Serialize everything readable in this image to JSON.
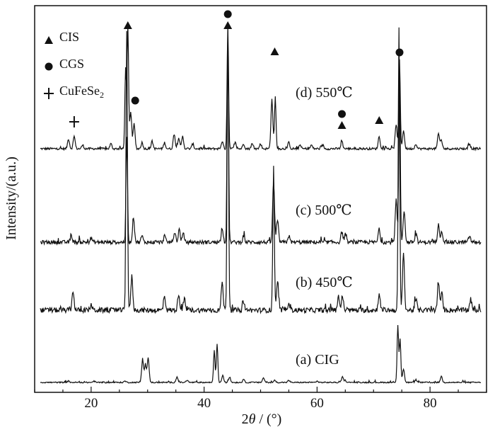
{
  "chart_data": {
    "type": "line",
    "xlabel_prefix": "2",
    "xlabel_theta": "θ",
    "xlabel_unit": " / (°)",
    "ylabel": "Intensity/(a.u.)",
    "xlim": [
      10,
      90
    ],
    "xticks": [
      20,
      40,
      60,
      80
    ],
    "legend": [
      {
        "marker": "triangle",
        "label": "CIS"
      },
      {
        "marker": "circle",
        "label": "CGS"
      },
      {
        "marker": "cross",
        "label": "CuFeSe",
        "subscript": "2"
      }
    ],
    "series": [
      {
        "name": "(d) 550℃",
        "peaks": [
          [
            16.0,
            0.08
          ],
          [
            17.0,
            0.1
          ],
          [
            18.5,
            0.03
          ],
          [
            23.5,
            0.04
          ],
          [
            26.1,
            0.66
          ],
          [
            26.5,
            1.0
          ],
          [
            27.0,
            0.3
          ],
          [
            27.6,
            0.2
          ],
          [
            29.0,
            0.05
          ],
          [
            30.8,
            0.06
          ],
          [
            33.0,
            0.05
          ],
          [
            34.7,
            0.12
          ],
          [
            35.5,
            0.09
          ],
          [
            36.2,
            0.1
          ],
          [
            38.0,
            0.04
          ],
          [
            43.2,
            0.06
          ],
          [
            44.2,
            1.0
          ],
          [
            45.5,
            0.05
          ],
          [
            47.0,
            0.04
          ],
          [
            48.5,
            0.04
          ],
          [
            50.0,
            0.04
          ],
          [
            52.0,
            0.4
          ],
          [
            52.6,
            0.42
          ],
          [
            55.0,
            0.05
          ],
          [
            57.0,
            0.03
          ],
          [
            59.0,
            0.03
          ],
          [
            61.0,
            0.03
          ],
          [
            64.4,
            0.06
          ],
          [
            71.0,
            0.1
          ],
          [
            74.0,
            0.2
          ],
          [
            74.6,
            0.72
          ],
          [
            75.3,
            0.15
          ],
          [
            77.5,
            0.04
          ],
          [
            81.5,
            0.12
          ],
          [
            82.0,
            0.07
          ],
          [
            87.0,
            0.04
          ]
        ]
      },
      {
        "name": "(c) 500℃",
        "peaks": [
          [
            16.5,
            0.03
          ],
          [
            20.0,
            0.02
          ],
          [
            26.3,
            0.5
          ],
          [
            27.5,
            0.12
          ],
          [
            29.0,
            0.03
          ],
          [
            33.0,
            0.03
          ],
          [
            34.8,
            0.05
          ],
          [
            35.6,
            0.06
          ],
          [
            36.3,
            0.04
          ],
          [
            43.2,
            0.07
          ],
          [
            44.2,
            1.0
          ],
          [
            47.0,
            0.03
          ],
          [
            52.3,
            0.28
          ],
          [
            53.0,
            0.1
          ],
          [
            55.0,
            0.03
          ],
          [
            64.4,
            0.05
          ],
          [
            65.0,
            0.03
          ],
          [
            71.0,
            0.06
          ],
          [
            74.0,
            0.2
          ],
          [
            74.6,
            0.8
          ],
          [
            75.4,
            0.15
          ],
          [
            77.5,
            0.04
          ],
          [
            81.5,
            0.09
          ],
          [
            82.1,
            0.05
          ],
          [
            87.0,
            0.03
          ]
        ]
      },
      {
        "name": "(b) 450℃",
        "peaks": [
          [
            16.8,
            0.07
          ],
          [
            20.0,
            0.02
          ],
          [
            26.3,
            1.0
          ],
          [
            27.2,
            0.12
          ],
          [
            33.0,
            0.05
          ],
          [
            35.5,
            0.06
          ],
          [
            36.5,
            0.04
          ],
          [
            43.2,
            0.1
          ],
          [
            44.2,
            1.0
          ],
          [
            47.0,
            0.03
          ],
          [
            52.3,
            0.52
          ],
          [
            53.0,
            0.1
          ],
          [
            55.0,
            0.03
          ],
          [
            63.8,
            0.05
          ],
          [
            64.5,
            0.05
          ],
          [
            71.0,
            0.06
          ],
          [
            74.5,
            1.0
          ],
          [
            75.3,
            0.2
          ],
          [
            77.5,
            0.04
          ],
          [
            81.5,
            0.1
          ],
          [
            82.1,
            0.06
          ],
          [
            87.2,
            0.04
          ]
        ]
      },
      {
        "name": "(a) CIG",
        "peaks": [
          [
            16.0,
            0.02
          ],
          [
            20.5,
            0.02
          ],
          [
            26.0,
            0.02
          ],
          [
            29.1,
            0.33
          ],
          [
            29.6,
            0.25
          ],
          [
            30.1,
            0.36
          ],
          [
            35.2,
            0.08
          ],
          [
            37.0,
            0.03
          ],
          [
            41.8,
            0.48
          ],
          [
            42.3,
            0.58
          ],
          [
            43.3,
            0.1
          ],
          [
            44.5,
            0.08
          ],
          [
            47.0,
            0.04
          ],
          [
            50.5,
            0.07
          ],
          [
            52.5,
            0.03
          ],
          [
            55.0,
            0.03
          ],
          [
            60.0,
            0.02
          ],
          [
            64.5,
            0.08
          ],
          [
            65.0,
            0.03
          ],
          [
            74.3,
            0.85
          ],
          [
            74.7,
            0.65
          ],
          [
            75.3,
            0.2
          ],
          [
            77.5,
            0.04
          ],
          [
            82.0,
            0.09
          ]
        ]
      }
    ],
    "annotations": [
      {
        "marker": "triangle",
        "x": 26.5,
        "series": "(d) 550℃"
      },
      {
        "marker": "circle",
        "x": 27.8,
        "series": "(d) 550℃"
      },
      {
        "marker": "cross",
        "x": 17.0,
        "series": "(d) 550℃"
      },
      {
        "marker": "triangle",
        "x": 44.2,
        "series": "(d) 550℃"
      },
      {
        "marker": "circle",
        "x": 44.2,
        "series": "(d) 550℃"
      },
      {
        "marker": "triangle",
        "x": 52.5,
        "series": "(d) 550℃"
      },
      {
        "marker": "triangle",
        "x": 64.4,
        "series": "(d) 550℃"
      },
      {
        "marker": "circle",
        "x": 64.4,
        "series": "(d) 550℃"
      },
      {
        "marker": "triangle",
        "x": 71.0,
        "series": "(d) 550℃"
      },
      {
        "marker": "circle",
        "x": 74.6,
        "series": "(d) 550℃"
      }
    ]
  }
}
